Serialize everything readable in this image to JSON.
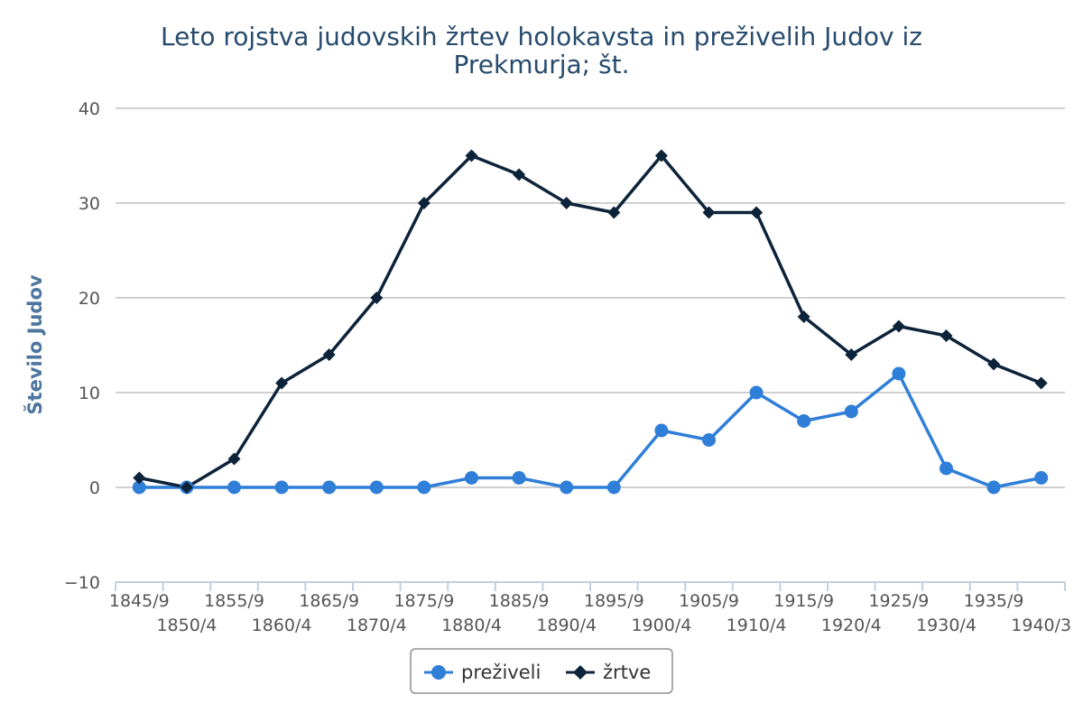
{
  "chart_data": {
    "type": "line",
    "title_line1": "Leto rojstva judovskih žrtev holokavsta in preživelih Judov iz",
    "title_line2": "Prekmurja; št.",
    "xlabel": "",
    "ylabel": "Število Judov",
    "ylim": [
      -10,
      40
    ],
    "yticks": [
      "40",
      "30",
      "20",
      "10",
      "0",
      "−10"
    ],
    "ytick_values": [
      40,
      30,
      20,
      10,
      0,
      -10
    ],
    "categories": [
      "1845/9",
      "1850/4",
      "1855/9",
      "1860/4",
      "1865/9",
      "1870/4",
      "1875/9",
      "1880/4",
      "1885/9",
      "1890/4",
      "1895/9",
      "1900/4",
      "1905/9",
      "1910/4",
      "1915/9",
      "1920/4",
      "1925/9",
      "1930/4",
      "1935/9",
      "1940/3"
    ],
    "series": [
      {
        "name": "preživeli",
        "color": "#2f7ed8",
        "marker": "circle",
        "values": [
          0,
          0,
          0,
          0,
          0,
          0,
          0,
          1,
          1,
          0,
          0,
          6,
          5,
          10,
          7,
          8,
          12,
          2,
          0,
          1
        ]
      },
      {
        "name": "žrtve",
        "color": "#0d233a",
        "marker": "diamond",
        "values": [
          1,
          0,
          3,
          11,
          14,
          20,
          30,
          35,
          33,
          30,
          29,
          35,
          29,
          29,
          18,
          14,
          17,
          16,
          13,
          11
        ]
      }
    ],
    "grid": true,
    "legend_position": "bottom-center"
  }
}
